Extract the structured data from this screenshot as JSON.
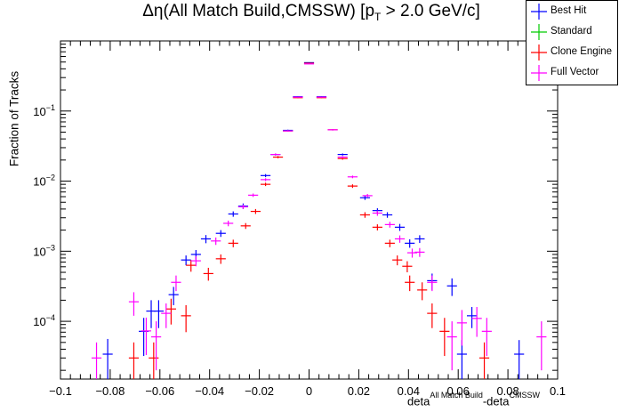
{
  "chart_data": {
    "type": "scatter",
    "title_main": "Δη(All Match Build,CMSSW) [p",
    "title_sub": "T",
    "title_end": " > 2.0 GeV/c]",
    "ylabel": "Fraction of Tracks",
    "xlabel_base1": "deta",
    "xlabel_sup1": "All Match Build",
    "xlabel_base2": "-deta",
    "xlabel_sup2": "CMSSW",
    "xlim": [
      -0.1,
      0.1
    ],
    "ylim": [
      1.5e-05,
      1.0
    ],
    "yscale": "log",
    "xticks": [
      -0.1,
      -0.08,
      -0.06,
      -0.04,
      -0.02,
      0,
      0.02,
      0.04,
      0.06,
      0.08,
      0.1
    ],
    "xtick_labels": [
      "−0.1",
      "−0.08",
      "−0.06",
      "−0.04",
      "−0.02",
      "0",
      "0.02",
      "0.04",
      "0.06",
      "0.08",
      "0.1"
    ],
    "yticks": [
      {
        "value": 0.0001,
        "base": "10",
        "exp": "−4"
      },
      {
        "value": 0.001,
        "base": "10",
        "exp": "−3"
      },
      {
        "value": 0.01,
        "base": "10",
        "exp": "−2"
      },
      {
        "value": 0.1,
        "base": "10",
        "exp": "−1"
      }
    ],
    "legend": [
      {
        "name": "Best Hit",
        "color": "#0000ff"
      },
      {
        "name": "Standard",
        "color": "#00cc00"
      },
      {
        "name": "Clone Engine",
        "color": "#ff0000"
      },
      {
        "name": "Full Vector",
        "color": "#ff00ff"
      }
    ],
    "series": [
      {
        "name": "Best Hit",
        "color": "#0000ff",
        "points": [
          [
            -0.081,
            3.4e-05,
            2.2e-05
          ],
          [
            -0.0665,
            7.2e-05,
            4e-05
          ],
          [
            -0.0635,
            0.00014,
            6e-05
          ],
          [
            -0.0605,
            0.00014,
            6e-05
          ],
          [
            -0.0545,
            0.00024,
            7e-05
          ],
          [
            -0.0495,
            0.00075,
            0.00012
          ],
          [
            -0.0455,
            0.0009,
            0.00014
          ],
          [
            -0.0415,
            0.0015,
            0.0002
          ],
          [
            -0.0355,
            0.0018,
            0.0002
          ],
          [
            -0.0305,
            0.0034,
            0.0003
          ],
          [
            -0.0265,
            0.0044,
            0.0004
          ],
          [
            -0.0175,
            0.012,
            0.0006
          ],
          [
            -0.0135,
            0.024,
            0.0008
          ],
          [
            -0.0085,
            0.053,
            0.0012
          ],
          [
            -0.0045,
            0.16,
            0.002
          ],
          [
            0.0,
            0.49,
            0.004
          ],
          [
            0.005,
            0.16,
            0.002
          ],
          [
            0.0135,
            0.024,
            0.0008
          ],
          [
            0.0225,
            0.0058,
            0.0004
          ],
          [
            0.0275,
            0.0038,
            0.0003
          ],
          [
            0.0315,
            0.0033,
            0.0003
          ],
          [
            0.0365,
            0.0022,
            0.00025
          ],
          [
            0.0405,
            0.0013,
            0.00018
          ],
          [
            0.0445,
            0.0015,
            0.00019
          ],
          [
            0.0495,
            0.00038,
            0.0001
          ],
          [
            0.0575,
            0.00032,
            9e-05
          ],
          [
            0.0615,
            3.4e-05,
            2e-05
          ],
          [
            0.0655,
            0.00012,
            4e-05
          ],
          [
            0.0845,
            3.4e-05,
            2e-05
          ]
        ]
      },
      {
        "name": "Standard",
        "color": "#00cc00",
        "points": []
      },
      {
        "name": "Clone Engine",
        "color": "#ff0000",
        "points": [
          [
            -0.0705,
            3e-05,
            2e-05
          ],
          [
            -0.0625,
            3e-05,
            2e-05
          ],
          [
            -0.0555,
            0.00015,
            6e-05
          ],
          [
            -0.0495,
            0.00012,
            5e-05
          ],
          [
            -0.0475,
            0.00063,
            0.00012
          ],
          [
            -0.0405,
            0.00048,
            0.0001
          ],
          [
            -0.0355,
            0.00078,
            0.00012
          ],
          [
            -0.0305,
            0.0013,
            0.00016
          ],
          [
            -0.0255,
            0.0023,
            0.00022
          ],
          [
            -0.0215,
            0.0037,
            0.0003
          ],
          [
            -0.0175,
            0.009,
            0.0005
          ],
          [
            -0.0125,
            0.022,
            0.0008
          ],
          [
            -0.0085,
            0.052,
            0.0012
          ],
          [
            -0.0045,
            0.155,
            0.002
          ],
          [
            0.0,
            0.48,
            0.004
          ],
          [
            0.005,
            0.155,
            0.002
          ],
          [
            0.0095,
            0.054,
            0.0012
          ],
          [
            0.0135,
            0.021,
            0.0008
          ],
          [
            0.0175,
            0.0085,
            0.0005
          ],
          [
            0.0225,
            0.0033,
            0.0003
          ],
          [
            0.0275,
            0.0022,
            0.00022
          ],
          [
            0.0325,
            0.0013,
            0.00016
          ],
          [
            0.0355,
            0.00075,
            0.00012
          ],
          [
            0.0395,
            0.00061,
            0.00011
          ],
          [
            0.0405,
            0.00036,
            9e-05
          ],
          [
            0.0455,
            0.00028,
            8e-05
          ],
          [
            0.0495,
            0.00013,
            5e-05
          ],
          [
            0.0545,
            7.2e-05,
            4e-05
          ],
          [
            0.0705,
            3e-05,
            2e-05
          ]
        ]
      },
      {
        "name": "Full Vector",
        "color": "#ff00ff",
        "points": [
          [
            -0.0855,
            3e-05,
            2e-05
          ],
          [
            -0.0705,
            0.00019,
            7e-05
          ],
          [
            -0.0655,
            7.3e-05,
            4e-05
          ],
          [
            -0.0615,
            6e-05,
            4e-05
          ],
          [
            -0.0575,
            0.00013,
            5e-05
          ],
          [
            -0.0535,
            0.00036,
            9e-05
          ],
          [
            -0.0455,
            0.00073,
            0.00012
          ],
          [
            -0.0375,
            0.0014,
            0.00017
          ],
          [
            -0.0325,
            0.0025,
            0.00023
          ],
          [
            -0.0265,
            0.0043,
            0.0003
          ],
          [
            -0.0225,
            0.0063,
            0.00035
          ],
          [
            -0.0175,
            0.0105,
            0.0005
          ],
          [
            -0.0135,
            0.024,
            0.0008
          ],
          [
            -0.0085,
            0.052,
            0.0012
          ],
          [
            -0.0045,
            0.158,
            0.002
          ],
          [
            0.0,
            0.47,
            0.004
          ],
          [
            0.005,
            0.158,
            0.002
          ],
          [
            0.0095,
            0.054,
            0.0012
          ],
          [
            0.0135,
            0.022,
            0.0008
          ],
          [
            0.0175,
            0.0115,
            0.0005
          ],
          [
            0.0235,
            0.0062,
            0.00035
          ],
          [
            0.0275,
            0.0035,
            0.0003
          ],
          [
            0.0325,
            0.0024,
            0.00023
          ],
          [
            0.0365,
            0.0015,
            0.00018
          ],
          [
            0.0415,
            0.00095,
            0.00014
          ],
          [
            0.0445,
            0.00097,
            0.00014
          ],
          [
            0.0495,
            0.00036,
            9e-05
          ],
          [
            0.0575,
            6e-05,
            4e-05
          ],
          [
            0.0615,
            9.5e-05,
            5e-05
          ],
          [
            0.0675,
            0.00011,
            5e-05
          ],
          [
            0.0715,
            7.2e-05,
            4e-05
          ],
          [
            0.0935,
            6e-05,
            4e-05
          ]
        ]
      }
    ]
  }
}
